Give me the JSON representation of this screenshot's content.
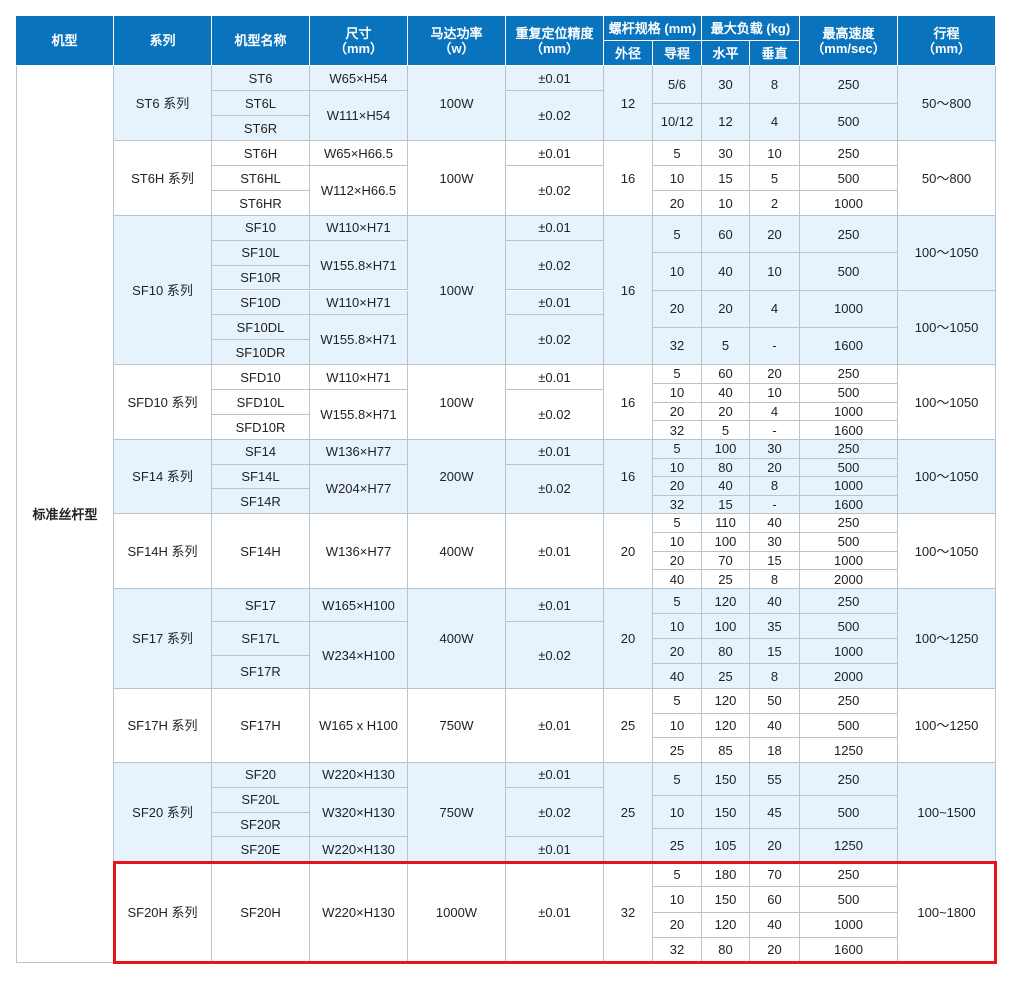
{
  "colors": {
    "header": "#0a73bd",
    "row_shade": "#e7f3fc",
    "highlight": "#e3141b"
  },
  "header": {
    "type": "机型",
    "series": "系列",
    "model": "机型名称",
    "size": "尺寸",
    "size_unit": "（mm）",
    "power": "马达功率",
    "power_unit": "（w）",
    "precision": "重复定位精度",
    "precision_unit": "（mm）",
    "screw": "螺杆规格 (mm)",
    "screw_dia": "外径",
    "screw_lead": "导程",
    "load": "最大负载 (kg)",
    "load_h": "水平",
    "load_v": "垂直",
    "speed": "最高速度",
    "speed_unit": "（mm/sec）",
    "stroke": "行程",
    "stroke_unit": "（mm）"
  },
  "type_label": "标准丝杆型",
  "series": [
    {
      "name": "ST6 系列",
      "models": [
        "ST6",
        "ST6L",
        "ST6R"
      ],
      "sizes": [
        [
          "W65×H54",
          1
        ],
        [
          "W111×H54",
          2
        ]
      ],
      "power": "100W",
      "precision": [
        [
          "±0.01",
          1
        ],
        [
          "±0.02",
          2
        ]
      ],
      "dia": "12",
      "specs": [
        [
          "5/6",
          "30",
          "8",
          "250"
        ],
        [
          "10/12",
          "12",
          "4",
          "500"
        ]
      ],
      "stroke": [
        [
          "50～800",
          2
        ]
      ]
    },
    {
      "name": "ST6H 系列",
      "models": [
        "ST6H",
        "ST6HL",
        "ST6HR"
      ],
      "sizes": [
        [
          "W65×H66.5",
          1
        ],
        [
          "W112×H66.5",
          2
        ]
      ],
      "power": "100W",
      "precision": [
        [
          "±0.01",
          1
        ],
        [
          "±0.02",
          2
        ]
      ],
      "dia": "16",
      "specs": [
        [
          "5",
          "30",
          "10",
          "250"
        ],
        [
          "10",
          "15",
          "5",
          "500"
        ],
        [
          "20",
          "10",
          "2",
          "1000"
        ]
      ],
      "stroke": [
        [
          "50～800",
          3
        ]
      ]
    },
    {
      "name": "SF10 系列",
      "models": [
        "SF10",
        "SF10L",
        "SF10R",
        "SF10D",
        "SF10DL",
        "SF10DR"
      ],
      "sizes": [
        [
          "W110×H71",
          1
        ],
        [
          "W155.8×H71",
          2
        ],
        [
          "W110×H71",
          1
        ],
        [
          "W155.8×H71",
          2
        ]
      ],
      "power": "100W",
      "precision": [
        [
          "±0.01",
          1
        ],
        [
          "±0.02",
          2
        ],
        [
          "±0.01",
          1
        ],
        [
          "±0.02",
          2
        ]
      ],
      "dia": "16",
      "specs": [
        [
          "5",
          "60",
          "20",
          "250"
        ],
        [
          "10",
          "40",
          "10",
          "500"
        ],
        [
          "20",
          "20",
          "4",
          "1000"
        ],
        [
          "32",
          "5",
          "-",
          "1600"
        ]
      ],
      "stroke": [
        [
          "100～1050",
          2
        ],
        [
          "100～1050",
          2
        ]
      ]
    },
    {
      "name": "SFD10 系列",
      "models": [
        "SFD10",
        "SFD10L",
        "SFD10R"
      ],
      "sizes": [
        [
          "W110×H71",
          1
        ],
        [
          "W155.8×H71",
          2
        ]
      ],
      "power": "100W",
      "precision": [
        [
          "±0.01",
          1
        ],
        [
          "±0.02",
          2
        ]
      ],
      "dia": "16",
      "specs": [
        [
          "5",
          "60",
          "20",
          "250"
        ],
        [
          "10",
          "40",
          "10",
          "500"
        ],
        [
          "20",
          "20",
          "4",
          "1000"
        ],
        [
          "32",
          "5",
          "-",
          "1600"
        ]
      ],
      "stroke": [
        [
          "100～1050",
          4
        ]
      ]
    },
    {
      "name": "SF14 系列",
      "models": [
        "SF14",
        "SF14L",
        "SF14R"
      ],
      "sizes": [
        [
          "W136×H77",
          1
        ],
        [
          "W204×H77",
          2
        ]
      ],
      "power": "200W",
      "precision": [
        [
          "±0.01",
          1
        ],
        [
          "±0.02",
          2
        ]
      ],
      "dia": "16",
      "specs": [
        [
          "5",
          "100",
          "30",
          "250"
        ],
        [
          "10",
          "80",
          "20",
          "500"
        ],
        [
          "20",
          "40",
          "8",
          "1000"
        ],
        [
          "32",
          "15",
          "-",
          "1600"
        ]
      ],
      "stroke": [
        [
          "100～1050",
          4
        ]
      ]
    },
    {
      "name": "SF14H 系列",
      "models": [
        "SF14H"
      ],
      "sizes": [
        [
          "W136×H77",
          1
        ]
      ],
      "power": "400W",
      "precision": [
        [
          "±0.01",
          1
        ]
      ],
      "dia": "20",
      "specs": [
        [
          "5",
          "110",
          "40",
          "250"
        ],
        [
          "10",
          "100",
          "30",
          "500"
        ],
        [
          "20",
          "70",
          "15",
          "1000"
        ],
        [
          "40",
          "25",
          "8",
          "2000"
        ]
      ],
      "stroke": [
        [
          "100～1050",
          4
        ]
      ]
    },
    {
      "name": "SF17 系列",
      "models": [
        "SF17",
        "SF17L",
        "SF17R"
      ],
      "sizes": [
        [
          "W165×H100",
          1
        ],
        [
          "W234×H100",
          2
        ]
      ],
      "power": "400W",
      "precision": [
        [
          "±0.01",
          1
        ],
        [
          "±0.02",
          2
        ]
      ],
      "dia": "20",
      "specs": [
        [
          "5",
          "120",
          "40",
          "250"
        ],
        [
          "10",
          "100",
          "35",
          "500"
        ],
        [
          "20",
          "80",
          "15",
          "1000"
        ],
        [
          "40",
          "25",
          "8",
          "2000"
        ]
      ],
      "stroke": [
        [
          "100～1250",
          4
        ]
      ]
    },
    {
      "name": "SF17H 系列",
      "models": [
        "SF17H"
      ],
      "sizes": [
        [
          "W165 x H100",
          1
        ]
      ],
      "power": "750W",
      "precision": [
        [
          "±0.01",
          1
        ]
      ],
      "dia": "25",
      "specs": [
        [
          "5",
          "120",
          "50",
          "250"
        ],
        [
          "10",
          "120",
          "40",
          "500"
        ],
        [
          "25",
          "85",
          "18",
          "1250"
        ]
      ],
      "stroke": [
        [
          "100～1250",
          3
        ]
      ]
    },
    {
      "name": "SF20 系列",
      "models": [
        "SF20",
        "SF20L",
        "SF20R",
        "SF20E"
      ],
      "sizes": [
        [
          "W220×H130",
          1
        ],
        [
          "W320×H130",
          2
        ],
        [
          "W220×H130",
          1
        ]
      ],
      "power": "750W",
      "precision": [
        [
          "±0.01",
          1
        ],
        [
          "±0.02",
          2
        ],
        [
          "±0.01",
          1
        ]
      ],
      "dia": "25",
      "specs": [
        [
          "5",
          "150",
          "55",
          "250"
        ],
        [
          "10",
          "150",
          "45",
          "500"
        ],
        [
          "25",
          "105",
          "20",
          "1250"
        ]
      ],
      "stroke": [
        [
          "100~1500",
          3
        ]
      ]
    },
    {
      "name": "SF20H 系列",
      "models": [
        "SF20H"
      ],
      "sizes": [
        [
          "W220×H130",
          1
        ]
      ],
      "power": "1000W",
      "precision": [
        [
          "±0.01",
          1
        ]
      ],
      "dia": "32",
      "specs": [
        [
          "5",
          "180",
          "70",
          "250"
        ],
        [
          "10",
          "150",
          "60",
          "500"
        ],
        [
          "20",
          "120",
          "40",
          "1000"
        ],
        [
          "32",
          "80",
          "20",
          "1600"
        ]
      ],
      "stroke": [
        [
          "100~1800",
          4
        ]
      ]
    }
  ]
}
